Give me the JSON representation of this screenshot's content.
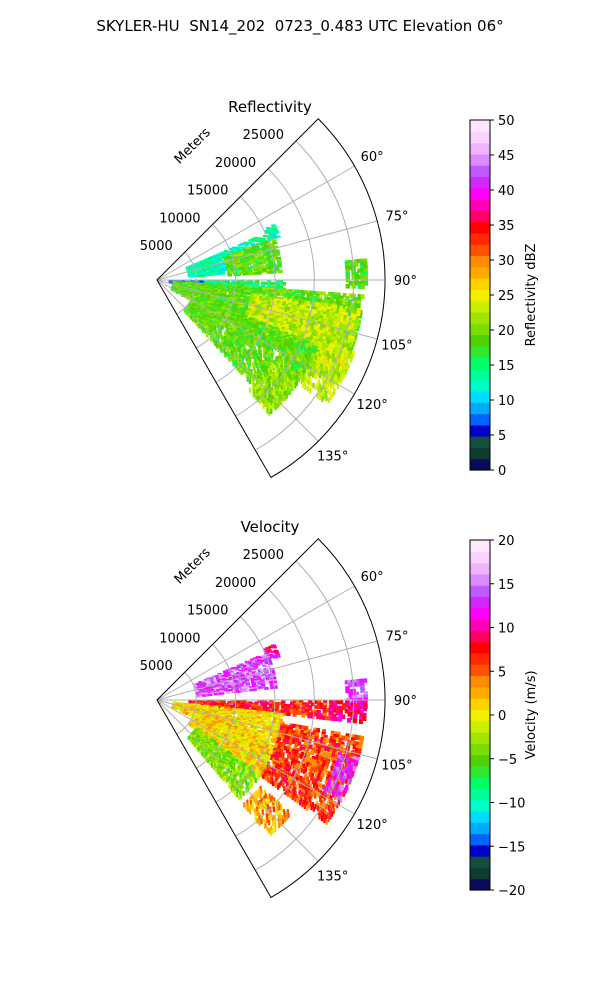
{
  "figure": {
    "suptitle": "SKYLER-HU  SN14_202  0723_0.483 UTC Elevation 06°"
  },
  "chart_data": [
    {
      "type": "polar_sector",
      "title": "Reflectivity",
      "radial_axis_label": "Meters",
      "radial_ticks": [
        5000,
        10000,
        15000,
        20000,
        25000
      ],
      "radial_tick_labels": [
        "5000",
        "10000",
        "15000",
        "20000",
        "25000"
      ],
      "rlim": [
        0,
        29000
      ],
      "azimuth_range_deg": [
        45,
        150
      ],
      "azimuth_ticks_deg": [
        60,
        75,
        90,
        105,
        120,
        135
      ],
      "azimuth_tick_labels": [
        "60°",
        "75°",
        "90°",
        "105°",
        "120°",
        "135°"
      ],
      "grid": true,
      "colorbar": {
        "label": "Reflectivity dBZ",
        "range": [
          0,
          50
        ],
        "ticks": [
          0,
          5,
          10,
          15,
          20,
          25,
          30,
          35,
          40,
          45,
          50
        ],
        "tick_labels": [
          "0",
          "5",
          "10",
          "15",
          "20",
          "25",
          "30",
          "35",
          "40",
          "45",
          "50"
        ],
        "colors": [
          "#0a0a5a",
          "#0f3c32",
          "#12503c",
          "#0000c8",
          "#0064ff",
          "#00aaff",
          "#00dcff",
          "#00ffc8",
          "#00ff96",
          "#00ff64",
          "#32e632",
          "#50d200",
          "#7ddc00",
          "#a0e600",
          "#c8f000",
          "#f0f000",
          "#ffd200",
          "#ffaa00",
          "#ff8c00",
          "#ff5000",
          "#ff2800",
          "#ff0000",
          "#ff0064",
          "#ff00b4",
          "#ff00ff",
          "#d228ff",
          "#be5aff",
          "#dc8cff",
          "#f0b4ff",
          "#fad2ff",
          "#ffe6ff"
        ]
      },
      "echo_regions": [
        {
          "az": [
            64,
            70
          ],
          "r": [
            15000,
            16500
          ],
          "value": 13
        },
        {
          "az": [
            66,
            84
          ],
          "r": [
            4000,
            15000
          ],
          "value": 13
        },
        {
          "az": [
            70,
            86
          ],
          "r": [
            9000,
            15500
          ],
          "value": 19
        },
        {
          "az": [
            84,
            92
          ],
          "r": [
            24000,
            26500
          ],
          "value": 18
        },
        {
          "az": [
            90,
            98
          ],
          "r": [
            1500,
            9000
          ],
          "value": 8
        },
        {
          "az": [
            90,
            96
          ],
          "r": [
            6000,
            16000
          ],
          "value": 15
        },
        {
          "az": [
            94,
            120
          ],
          "r": [
            2000,
            26000
          ],
          "value": 19
        },
        {
          "az": [
            98,
            118
          ],
          "r": [
            12000,
            26000
          ],
          "value": 23
        },
        {
          "az": [
            110,
            126
          ],
          "r": [
            18000,
            26500
          ],
          "value": 23
        },
        {
          "az": [
            112,
            138
          ],
          "r": [
            5000,
            22000
          ],
          "value": 19
        },
        {
          "az": [
            126,
            140
          ],
          "r": [
            18000,
            22000
          ],
          "value": 21
        }
      ]
    },
    {
      "type": "polar_sector",
      "title": "Velocity",
      "radial_axis_label": "Meters",
      "radial_ticks": [
        5000,
        10000,
        15000,
        20000,
        25000
      ],
      "radial_tick_labels": [
        "5000",
        "10000",
        "15000",
        "20000",
        "25000"
      ],
      "rlim": [
        0,
        29000
      ],
      "azimuth_range_deg": [
        45,
        150
      ],
      "azimuth_ticks_deg": [
        60,
        75,
        90,
        105,
        120,
        135
      ],
      "azimuth_tick_labels": [
        "60°",
        "75°",
        "90°",
        "105°",
        "120°",
        "135°"
      ],
      "grid": true,
      "colorbar": {
        "label": "Velocity (m/s)",
        "range": [
          -20,
          20
        ],
        "ticks": [
          -20,
          -15,
          -10,
          -5,
          0,
          5,
          10,
          15,
          20
        ],
        "tick_labels": [
          "−20",
          "−15",
          "−10",
          "−5",
          "0",
          "5",
          "10",
          "15",
          "20"
        ],
        "colors": [
          "#0a0a5a",
          "#0f3c32",
          "#12503c",
          "#0000c8",
          "#0064ff",
          "#00aaff",
          "#00dcff",
          "#00ffc8",
          "#00ff96",
          "#00ff64",
          "#32e632",
          "#50d200",
          "#7ddc00",
          "#a0e600",
          "#c8f000",
          "#f0f000",
          "#ffd200",
          "#ffaa00",
          "#ff8c00",
          "#ff5000",
          "#ff2800",
          "#ff0000",
          "#ff0064",
          "#ff00b4",
          "#ff00ff",
          "#d228ff",
          "#be5aff",
          "#dc8cff",
          "#f0b4ff",
          "#fad2ff",
          "#ffe6ff"
        ]
      },
      "echo_regions": [
        {
          "az": [
            64,
            70
          ],
          "r": [
            15000,
            16500
          ],
          "value": 10
        },
        {
          "az": [
            66,
            84
          ],
          "r": [
            5000,
            15000
          ],
          "value": 14
        },
        {
          "az": [
            84,
            92
          ],
          "r": [
            24000,
            26500
          ],
          "value": 14
        },
        {
          "az": [
            90,
            96
          ],
          "r": [
            4000,
            22000
          ],
          "value": 7
        },
        {
          "az": [
            90,
            96
          ],
          "r": [
            22000,
            26500
          ],
          "value": 9
        },
        {
          "az": [
            96,
            114
          ],
          "r": [
            2000,
            16000
          ],
          "value": 1
        },
        {
          "az": [
            100,
            126
          ],
          "r": [
            16000,
            26500
          ],
          "value": 6
        },
        {
          "az": [
            106,
            118
          ],
          "r": [
            24000,
            26500
          ],
          "value": 13
        },
        {
          "az": [
            114,
            126
          ],
          "r": [
            5000,
            16000
          ],
          "value": 1
        },
        {
          "az": [
            126,
            140
          ],
          "r": [
            6000,
            16000
          ],
          "value": -4
        },
        {
          "az": [
            130,
            140
          ],
          "r": [
            17000,
            22000
          ],
          "value": 3
        }
      ]
    }
  ]
}
